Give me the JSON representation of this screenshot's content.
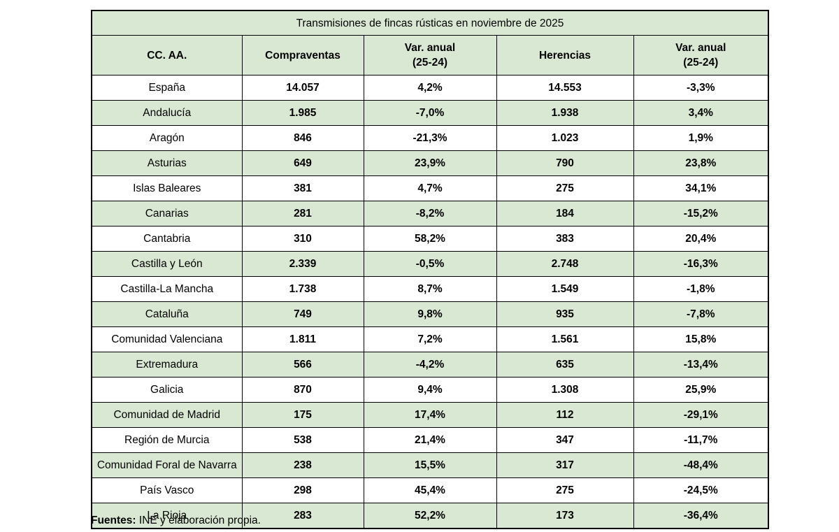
{
  "title": "Transmisiones de fincas rústicas en noviembre de 2025",
  "header": {
    "col_region": "CC. AA.",
    "col_compraventas": "Compraventas",
    "col_var1": "Var. anual\n(25-24)",
    "col_herencias": "Herencias",
    "col_var2": "Var. anual\n(25-24)"
  },
  "footer": {
    "label": "Fuentes:",
    "text": " INE y elaboración propia."
  },
  "colors": {
    "row_green": "#d9e8d2",
    "row_white": "#ffffff",
    "border": "#000000"
  },
  "chart_data": {
    "type": "table",
    "title": "Transmisiones de fincas rústicas en noviembre de 2025",
    "columns": [
      "CC. AA.",
      "Compraventas",
      "Var. anual (25-24)",
      "Herencias",
      "Var. anual (25-24)"
    ],
    "rows": [
      {
        "region": "España",
        "compraventas": "14.057",
        "var1": "4,2%",
        "herencias": "14.553",
        "var2": "-3,3%"
      },
      {
        "region": "Andalucía",
        "compraventas": "1.985",
        "var1": "-7,0%",
        "herencias": "1.938",
        "var2": "3,4%"
      },
      {
        "region": "Aragón",
        "compraventas": "846",
        "var1": "-21,3%",
        "herencias": "1.023",
        "var2": "1,9%"
      },
      {
        "region": "Asturias",
        "compraventas": "649",
        "var1": "23,9%",
        "herencias": "790",
        "var2": "23,8%"
      },
      {
        "region": "Islas Baleares",
        "compraventas": "381",
        "var1": "4,7%",
        "herencias": "275",
        "var2": "34,1%"
      },
      {
        "region": "Canarias",
        "compraventas": "281",
        "var1": "-8,2%",
        "herencias": "184",
        "var2": "-15,2%"
      },
      {
        "region": "Cantabria",
        "compraventas": "310",
        "var1": "58,2%",
        "herencias": "383",
        "var2": "20,4%"
      },
      {
        "region": "Castilla y León",
        "compraventas": "2.339",
        "var1": "-0,5%",
        "herencias": "2.748",
        "var2": "-16,3%"
      },
      {
        "region": "Castilla-La Mancha",
        "compraventas": "1.738",
        "var1": "8,7%",
        "herencias": "1.549",
        "var2": "-1,8%"
      },
      {
        "region": "Cataluña",
        "compraventas": "749",
        "var1": "9,8%",
        "herencias": "935",
        "var2": "-7,8%"
      },
      {
        "region": "Comunidad Valenciana",
        "compraventas": "1.811",
        "var1": "7,2%",
        "herencias": "1.561",
        "var2": "15,8%"
      },
      {
        "region": "Extremadura",
        "compraventas": "566",
        "var1": "-4,2%",
        "herencias": "635",
        "var2": "-13,4%"
      },
      {
        "region": "Galicia",
        "compraventas": "870",
        "var1": "9,4%",
        "herencias": "1.308",
        "var2": "25,9%"
      },
      {
        "region": "Comunidad de Madrid",
        "compraventas": "175",
        "var1": "17,4%",
        "herencias": "112",
        "var2": "-29,1%"
      },
      {
        "region": "Región de Murcia",
        "compraventas": "538",
        "var1": "21,4%",
        "herencias": "347",
        "var2": "-11,7%"
      },
      {
        "region": "Comunidad Foral de Navarra",
        "compraventas": "238",
        "var1": "15,5%",
        "herencias": "317",
        "var2": "-48,4%"
      },
      {
        "region": "País Vasco",
        "compraventas": "298",
        "var1": "45,4%",
        "herencias": "275",
        "var2": "-24,5%"
      },
      {
        "region": "La Rioja",
        "compraventas": "283",
        "var1": "52,2%",
        "herencias": "173",
        "var2": "-36,4%"
      }
    ]
  }
}
